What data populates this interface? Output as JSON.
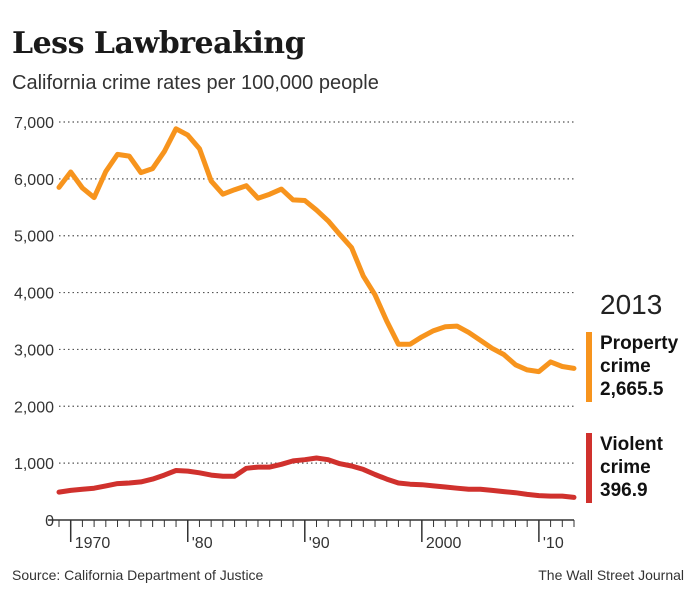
{
  "title": "Less Lawbreaking",
  "subtitle": "California crime rates per 100,000 people",
  "latest": {
    "year": "2013",
    "property": {
      "label_line1": "Property",
      "label_line2": "crime",
      "value": "2,665.5"
    },
    "violent": {
      "label_line1": "Violent",
      "label_line2": "crime",
      "value": "396.9"
    }
  },
  "source": "Source: California Department of Justice",
  "credit": "The Wall Street Journal",
  "colors": {
    "property": "#f7941d",
    "violent": "#d0312d",
    "grid": "#555555",
    "axis": "#333333"
  },
  "chart_data": {
    "type": "line",
    "title": "Less Lawbreaking",
    "subtitle": "California crime rates per 100,000 people",
    "x": [
      1969,
      1970,
      1971,
      1972,
      1973,
      1974,
      1975,
      1976,
      1977,
      1978,
      1979,
      1980,
      1981,
      1982,
      1983,
      1984,
      1985,
      1986,
      1987,
      1988,
      1989,
      1990,
      1991,
      1992,
      1993,
      1994,
      1995,
      1996,
      1997,
      1998,
      1999,
      2000,
      2001,
      2002,
      2003,
      2004,
      2005,
      2006,
      2007,
      2008,
      2009,
      2010,
      2011,
      2012,
      2013
    ],
    "xlim": [
      1969,
      2013
    ],
    "ylim": [
      0,
      7000
    ],
    "yticks": [
      0,
      1000,
      2000,
      3000,
      4000,
      5000,
      6000,
      7000
    ],
    "ytick_labels": [
      "0",
      "1,000",
      "2,000",
      "3,000",
      "4,000",
      "5,000",
      "6,000",
      "7,000"
    ],
    "xtick_positions": [
      1970,
      1980,
      1990,
      2000,
      2010
    ],
    "xtick_labels": [
      "1970",
      "'80",
      "'90",
      "2000",
      "'10"
    ],
    "grid": "horizontal dotted",
    "series": [
      {
        "name": "Property crime",
        "color": "#f7941d",
        "values": [
          5850,
          6120,
          5840,
          5670,
          6130,
          6430,
          6400,
          6110,
          6180,
          6480,
          6880,
          6770,
          6530,
          5960,
          5730,
          5810,
          5880,
          5660,
          5730,
          5820,
          5630,
          5620,
          5450,
          5260,
          5020,
          4790,
          4290,
          3960,
          3500,
          3090,
          3090,
          3220,
          3330,
          3400,
          3410,
          3300,
          3160,
          3020,
          2910,
          2730,
          2640,
          2610,
          2780,
          2700,
          2665.5
        ]
      },
      {
        "name": "Violent crime",
        "color": "#d0312d",
        "values": [
          490,
          520,
          540,
          560,
          600,
          640,
          650,
          670,
          720,
          790,
          870,
          860,
          830,
          790,
          770,
          770,
          910,
          930,
          930,
          980,
          1040,
          1060,
          1090,
          1060,
          990,
          950,
          890,
          800,
          720,
          650,
          630,
          620,
          600,
          580,
          560,
          540,
          540,
          520,
          500,
          480,
          450,
          430,
          420,
          420,
          396.9
        ]
      }
    ]
  }
}
